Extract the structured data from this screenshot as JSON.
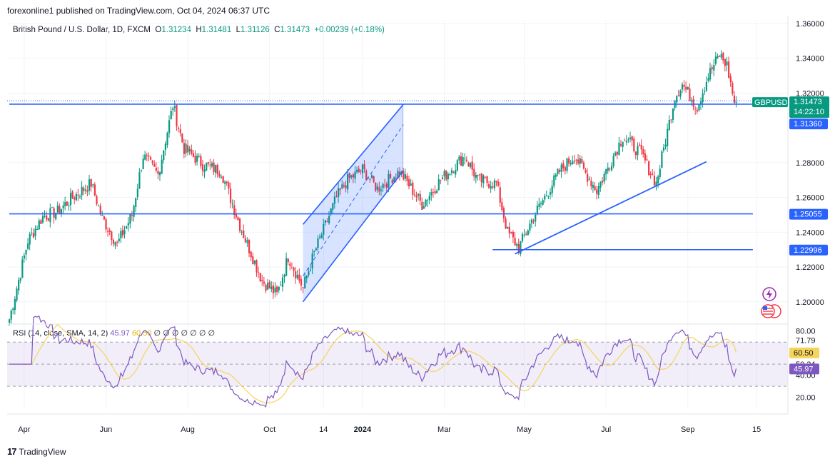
{
  "header": {
    "published": "forexonline1 published on TradingView.com, Oct 04, 2024 06:37 UTC"
  },
  "legend": {
    "symbol": "British Pound / U.S. Dollar, 1D, FXCM",
    "o_label": "O",
    "o": "1.31234",
    "h_label": "H",
    "h": "1.31481",
    "l_label": "L",
    "l": "1.31126",
    "c_label": "C",
    "c": "1.31473",
    "change": "+0.00239 (+0.18%)"
  },
  "rsi_legend": {
    "label": "RSI (14, close, SMA, 14, 2)",
    "rsi": "45.97",
    "sma": "60.50",
    "placeholders": [
      "∅",
      "∅",
      "∅",
      "∅",
      "∅",
      "∅",
      "∅"
    ]
  },
  "footer": {
    "brand": "TradingView",
    "logo": "17"
  },
  "colors": {
    "up": "#089981",
    "down": "#f23645",
    "line": "#2962ff",
    "rsi": "#7e57c2",
    "sma": "#f5d45b",
    "axis": "#131722"
  },
  "chart_data": {
    "type": "candlestick",
    "symbol": "GBPUSD",
    "price_axis": {
      "range": [
        1.188,
        1.362
      ],
      "ticks": [
        "1.36000",
        "1.34000",
        "1.32000",
        "1.28000",
        "1.26000",
        "1.24000",
        "1.22000",
        "1.20000"
      ],
      "tick_values": [
        1.36,
        1.34,
        1.32,
        1.28,
        1.26,
        1.24,
        1.22,
        1.2
      ]
    },
    "time_axis": {
      "labels": [
        "Apr",
        "Jun",
        "Aug",
        "Oct",
        "14",
        "2024",
        "Mar",
        "May",
        "Jul",
        "Sep",
        "15"
      ],
      "label_index": [
        8,
        52,
        96,
        140,
        169,
        190,
        234,
        277,
        321,
        365,
        402
      ]
    },
    "tags": {
      "last_symbol": "GBPUSD",
      "last_price": "1.31473",
      "last_price_value": 1.31473,
      "countdown": "14:22:10",
      "level_1": "1.31360",
      "level_1_value": 1.3136,
      "level_2": "1.25055",
      "level_2_value": 1.25055,
      "level_3": "1.22996",
      "level_3_value": 1.22996
    },
    "drawings": {
      "horizontal_lines": [
        {
          "value": 1.3136,
          "from_index": 0,
          "to_index": 400
        },
        {
          "value": 1.25055,
          "from_index": 0,
          "to_index": 400
        },
        {
          "value": 1.22996,
          "from_index": 260,
          "to_index": 400
        }
      ],
      "trendline": {
        "from": [
          272,
          1.2275
        ],
        "to": [
          375,
          1.2805
        ]
      },
      "channel": {
        "lower": {
          "from": [
            158,
            1.2
          ],
          "to": [
            212,
            1.2755
          ]
        },
        "upper": {
          "from": [
            158,
            1.2445
          ],
          "to": [
            212,
            1.3135
          ]
        }
      }
    },
    "anchors": [
      [
        0,
        1.19
      ],
      [
        10,
        1.235
      ],
      [
        18,
        1.249
      ],
      [
        26,
        1.252
      ],
      [
        34,
        1.26
      ],
      [
        44,
        1.268
      ],
      [
        50,
        1.248
      ],
      [
        58,
        1.233
      ],
      [
        66,
        1.25
      ],
      [
        72,
        1.284
      ],
      [
        80,
        1.273
      ],
      [
        88,
        1.313
      ],
      [
        94,
        1.288
      ],
      [
        104,
        1.279
      ],
      [
        114,
        1.275
      ],
      [
        124,
        1.244
      ],
      [
        136,
        1.212
      ],
      [
        144,
        1.204
      ],
      [
        150,
        1.226
      ],
      [
        158,
        1.208
      ],
      [
        164,
        1.228
      ],
      [
        176,
        1.26
      ],
      [
        182,
        1.27
      ],
      [
        190,
        1.276
      ],
      [
        198,
        1.265
      ],
      [
        210,
        1.275
      ],
      [
        222,
        1.256
      ],
      [
        232,
        1.27
      ],
      [
        245,
        1.284
      ],
      [
        252,
        1.27
      ],
      [
        262,
        1.268
      ],
      [
        268,
        1.24
      ],
      [
        274,
        1.231
      ],
      [
        282,
        1.249
      ],
      [
        296,
        1.275
      ],
      [
        304,
        1.284
      ],
      [
        316,
        1.264
      ],
      [
        330,
        1.295
      ],
      [
        340,
        1.285
      ],
      [
        348,
        1.268
      ],
      [
        358,
        1.318
      ],
      [
        362,
        1.325
      ],
      [
        370,
        1.312
      ],
      [
        376,
        1.33
      ],
      [
        382,
        1.342
      ],
      [
        386,
        1.336
      ],
      [
        390,
        1.3147
      ]
    ],
    "rsi": {
      "range": [
        10,
        85
      ],
      "ticks": [
        "80.00",
        "71.79",
        "50.24",
        "40.00",
        "20.00"
      ],
      "tick_values": [
        80,
        71.79,
        50.24,
        40,
        20
      ],
      "band": [
        70,
        30
      ],
      "midline": 50,
      "last_rsi": "45.97",
      "last_rsi_value": 45.97,
      "last_sma": "60.50",
      "last_sma_value": 60.5
    }
  }
}
